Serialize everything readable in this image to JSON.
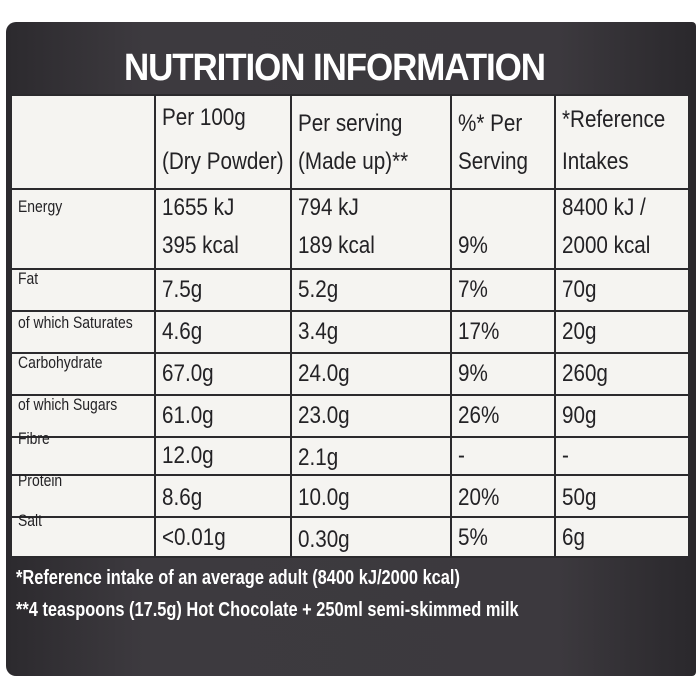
{
  "title": "NUTRITION INFORMATION",
  "headers": {
    "col1": [
      "Per 100g",
      "(Dry Powder)"
    ],
    "col2": [
      "Per serving",
      "(Made up)**"
    ],
    "col3": [
      "%* Per",
      "Serving"
    ],
    "col4": [
      "*Reference",
      "Intakes"
    ]
  },
  "energy": {
    "label": "Energy",
    "kj": [
      "1655 kJ",
      "794 kJ",
      "",
      "8400 kJ /"
    ],
    "kcal": [
      "395 kcal",
      "189 kcal",
      "9%",
      "2000 kcal"
    ]
  },
  "rows": [
    {
      "label": "Fat",
      "values": [
        "7.5g",
        "5.2g",
        "7%",
        "70g"
      ]
    },
    {
      "label": "of which Saturates",
      "values": [
        "4.6g",
        "3.4g",
        "17%",
        "20g"
      ]
    },
    {
      "label": "Carbohydrate",
      "values": [
        "67.0g",
        "24.0g",
        "9%",
        "260g"
      ]
    },
    {
      "label": "of which Sugars",
      "values": [
        "61.0g",
        "23.0g",
        "26%",
        "90g"
      ]
    },
    {
      "label": "Fibre",
      "values": [
        "12.0g",
        "2.1g",
        "-",
        "-"
      ]
    },
    {
      "label": "Protein",
      "values": [
        "8.6g",
        "10.0g",
        "20%",
        "50g"
      ]
    },
    {
      "label": "Salt",
      "values": [
        "<0.01g",
        "0.30g",
        "5%",
        "6g"
      ]
    }
  ],
  "footnotes": [
    "*Reference intake of an average adult (8400 kJ/2000 kcal)",
    "**4 teaspoons (17.5g) Hot Chocolate + 250ml semi-skimmed milk"
  ]
}
